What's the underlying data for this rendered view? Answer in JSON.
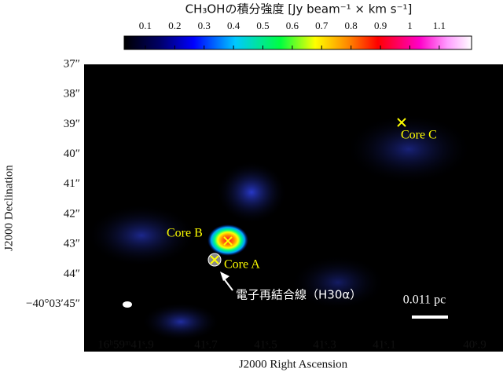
{
  "colorbar": {
    "title": "CH₃OHの積分強度 [Jy beam⁻¹ × km s⁻¹]",
    "ticks": [
      0.1,
      0.2,
      0.3,
      0.4,
      0.5,
      0.6,
      0.7,
      0.8,
      0.9,
      1,
      1.1
    ],
    "range": [
      0.028,
      1.21
    ]
  },
  "axes": {
    "x_label": "J2000 Right Ascension",
    "y_label": "J2000 Declination",
    "x_ticks": [
      "16ʰ59ᵐ41ˢ.9",
      "41ˢ.7",
      "41ˢ.5",
      "41ˢ.3",
      "41ˢ.1",
      "40ˢ.9"
    ],
    "y_ticks": [
      "37″",
      "38″",
      "39″",
      "40″",
      "41″",
      "42″",
      "43″",
      "44″",
      "−40°03′45″"
    ]
  },
  "annotations": {
    "core_a": "Core A",
    "core_b": "Core B",
    "core_c": "Core C",
    "arrow_label": "電子再結合線（H30α）",
    "scale_bar": "0.011 pc"
  }
}
